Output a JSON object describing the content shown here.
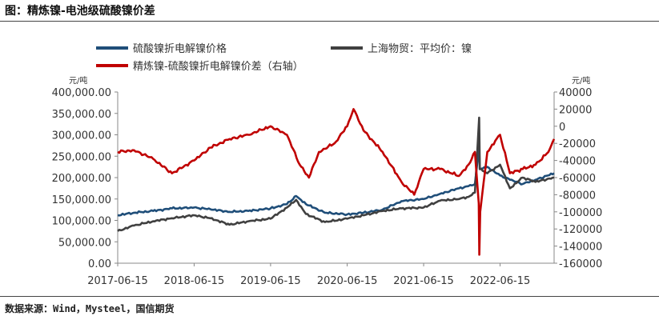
{
  "figure": {
    "title": "图：精炼镍-电池级硫酸镍价差",
    "source": "数据来源：Wind，Mysteel，国信期货"
  },
  "chart_data": {
    "type": "line",
    "left_unit": "元/吨",
    "right_unit": "元/吨",
    "x_ticks": [
      "2017-06-15",
      "2018-06-15",
      "2019-06-15",
      "2020-06-15",
      "2021-06-15",
      "2022-06-15"
    ],
    "x_range": [
      "2017-06-15",
      "2023-02-28"
    ],
    "left_ticks": [
      "0.00",
      "50,000.00",
      "100,000.00",
      "150,000.00",
      "200,000.00",
      "250,000.00",
      "300,000.00",
      "350,000.00",
      "400,000.00"
    ],
    "right_ticks": [
      "-160000",
      "-140000",
      "-120000",
      "-100000",
      "-80000",
      "-60000",
      "-40000",
      "-20000",
      "0",
      "20000",
      "40000"
    ],
    "left_ylim": [
      0,
      400000
    ],
    "right_ylim": [
      -160000,
      40000
    ],
    "grid": false,
    "legend_position": "top",
    "series": [
      {
        "name": "硫酸镍折电解镍价格",
        "axis": "left",
        "color": "#1f4e79",
        "x": [
          "2017-06-15",
          "2017-09-01",
          "2017-12-01",
          "2018-03-01",
          "2018-06-15",
          "2018-09-01",
          "2018-12-01",
          "2019-03-01",
          "2019-06-15",
          "2019-09-01",
          "2019-10-15",
          "2019-12-01",
          "2020-03-01",
          "2020-06-15",
          "2020-09-01",
          "2020-12-01",
          "2021-03-01",
          "2021-06-15",
          "2021-09-01",
          "2021-12-01",
          "2022-01-15",
          "2022-02-15",
          "2022-03-07",
          "2022-03-10",
          "2022-04-15",
          "2022-06-15",
          "2022-08-01",
          "2022-10-01",
          "2022-12-01",
          "2023-02-28"
        ],
        "values": [
          112000,
          118000,
          122000,
          128000,
          130000,
          126000,
          120000,
          122000,
          128000,
          138000,
          157000,
          138000,
          118000,
          114000,
          118000,
          125000,
          145000,
          150000,
          162000,
          175000,
          180000,
          185000,
          272000,
          220000,
          225000,
          205000,
          195000,
          185000,
          195000,
          210000
        ]
      },
      {
        "name": "上海物贸：平均价：镍",
        "axis": "left",
        "color": "#404040",
        "x": [
          "2017-06-15",
          "2017-09-01",
          "2017-12-01",
          "2018-03-01",
          "2018-06-15",
          "2018-09-01",
          "2018-12-01",
          "2019-03-01",
          "2019-06-15",
          "2019-09-01",
          "2019-10-15",
          "2019-12-01",
          "2020-03-01",
          "2020-06-15",
          "2020-09-01",
          "2020-12-01",
          "2021-03-01",
          "2021-06-15",
          "2021-09-01",
          "2021-12-01",
          "2022-01-15",
          "2022-02-15",
          "2022-03-07",
          "2022-03-10",
          "2022-04-15",
          "2022-06-15",
          "2022-08-01",
          "2022-10-01",
          "2022-12-01",
          "2023-02-28"
        ],
        "values": [
          75000,
          88000,
          98000,
          105000,
          112000,
          105000,
          90000,
          98000,
          104000,
          130000,
          148000,
          115000,
          96000,
          104000,
          112000,
          122000,
          128000,
          130000,
          146000,
          150000,
          155000,
          165000,
          340000,
          220000,
          210000,
          230000,
          175000,
          200000,
          190000,
          200000
        ]
      },
      {
        "name": "精炼镍-硫酸镍折电解镍价差（右轴）",
        "axis": "right",
        "color": "#c00000",
        "x": [
          "2017-06-15",
          "2017-09-01",
          "2017-12-01",
          "2018-03-01",
          "2018-06-15",
          "2018-09-01",
          "2018-12-01",
          "2019-03-01",
          "2019-06-15",
          "2019-09-01",
          "2019-11-01",
          "2019-12-15",
          "2020-02-01",
          "2020-04-15",
          "2020-06-15",
          "2020-07-15",
          "2020-09-01",
          "2020-12-01",
          "2021-03-01",
          "2021-05-01",
          "2021-06-15",
          "2021-09-01",
          "2021-12-01",
          "2022-01-15",
          "2022-02-15",
          "2022-03-05",
          "2022-03-08",
          "2022-03-12",
          "2022-04-15",
          "2022-06-15",
          "2022-08-01",
          "2022-10-01",
          "2022-12-01",
          "2023-02-01",
          "2023-02-28"
        ],
        "values": [
          -30000,
          -28000,
          -38000,
          -55000,
          -40000,
          -25000,
          -15000,
          -10000,
          0,
          -10000,
          -45000,
          -60000,
          -30000,
          -20000,
          0,
          20000,
          -5000,
          -30000,
          -65000,
          -80000,
          -50000,
          -50000,
          -58000,
          -45000,
          -30000,
          -90000,
          -150000,
          -100000,
          -30000,
          -10000,
          -55000,
          -50000,
          -45000,
          -30000,
          -15000
        ]
      }
    ]
  }
}
